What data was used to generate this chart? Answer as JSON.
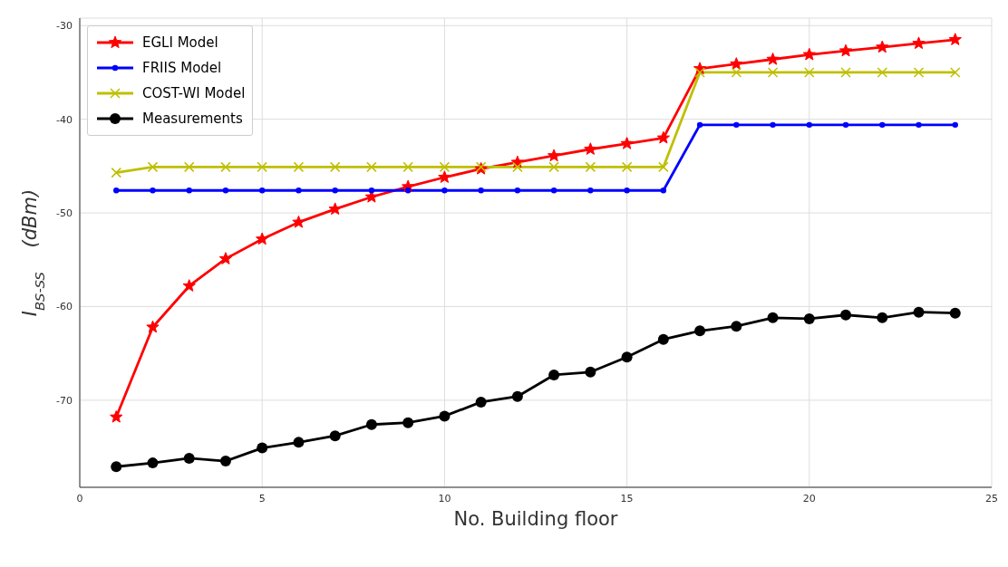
{
  "chart_data": {
    "type": "line",
    "xlabel": "No. Building floor",
    "ylabel": "I$_{BS-SS}$    (dBm)",
    "x": [
      1,
      2,
      3,
      4,
      5,
      6,
      7,
      8,
      9,
      10,
      11,
      12,
      13,
      14,
      15,
      16,
      17,
      18,
      19,
      20,
      21,
      22,
      23,
      24
    ],
    "series": [
      {
        "name": "EGLI Model",
        "color": "#ff0000",
        "marker": "star",
        "values": [
          -71.8,
          -62.2,
          -57.8,
          -54.9,
          -52.8,
          -51.0,
          -49.6,
          -48.3,
          -47.2,
          -46.2,
          -45.3,
          -44.6,
          -43.9,
          -43.2,
          -42.6,
          -42.0,
          -34.6,
          -34.1,
          -33.6,
          -33.1,
          -32.7,
          -32.3,
          -31.9,
          -31.5
        ]
      },
      {
        "name": "FRIIS Model",
        "color": "#0000ff",
        "marker": "circle",
        "values": [
          -47.6,
          -47.6,
          -47.6,
          -47.6,
          -47.6,
          -47.6,
          -47.6,
          -47.6,
          -47.6,
          -47.6,
          -47.6,
          -47.6,
          -47.6,
          -47.6,
          -47.6,
          -47.6,
          -40.6,
          -40.6,
          -40.6,
          -40.6,
          -40.6,
          -40.6,
          -40.6,
          -40.6
        ]
      },
      {
        "name": "COST-WI Model",
        "color": "#bfbf00",
        "marker": "cross",
        "values": [
          -45.7,
          -45.1,
          -45.1,
          -45.1,
          -45.1,
          -45.1,
          -45.1,
          -45.1,
          -45.1,
          -45.1,
          -45.1,
          -45.1,
          -45.1,
          -45.1,
          -45.1,
          -45.1,
          -35.0,
          -35.0,
          -35.0,
          -35.0,
          -35.0,
          -35.0,
          -35.0,
          -35.0
        ]
      },
      {
        "name": "Measurements",
        "color": "#000000",
        "marker": "circle",
        "values": [
          -77.1,
          -76.7,
          -76.2,
          -76.5,
          -75.1,
          -74.5,
          -73.8,
          -72.6,
          -72.4,
          -71.7,
          -70.2,
          -69.6,
          -67.3,
          -67.0,
          -65.4,
          -63.5,
          -62.6,
          -62.1,
          -61.2,
          -61.3,
          -60.9,
          -61.2,
          -60.6,
          -60.7
        ]
      }
    ],
    "xlim": [
      0,
      25
    ],
    "xticks": [
      0,
      5,
      10,
      15,
      20,
      25
    ],
    "ylim": [
      -79.3,
      -29.2
    ],
    "yticks": [
      -70,
      -60,
      -50,
      -40,
      -30
    ],
    "grid": true,
    "legend": "top left",
    "line_style": "solid"
  }
}
